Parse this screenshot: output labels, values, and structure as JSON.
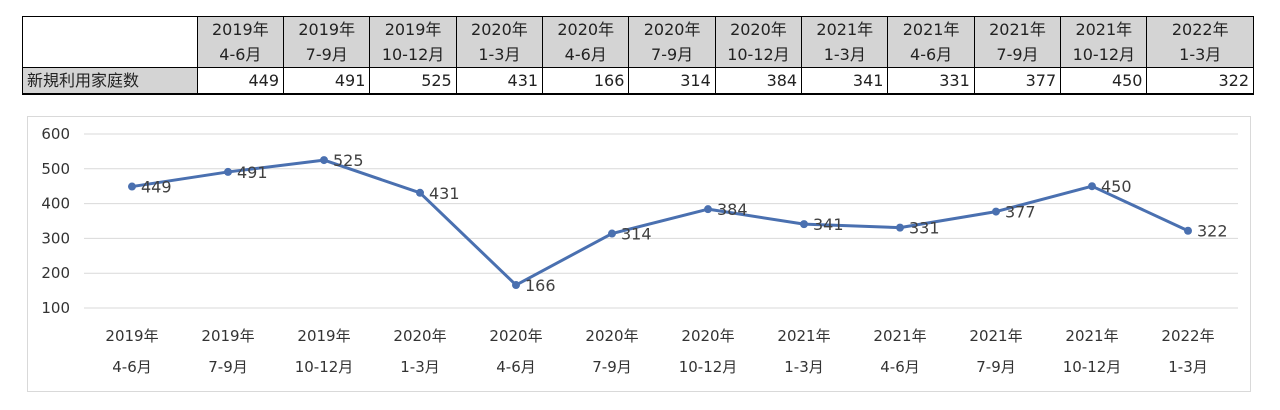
{
  "table": {
    "row_label": "新規利用家庭数",
    "columns": [
      {
        "year": "2019年",
        "period": "4-6月",
        "value": "449"
      },
      {
        "year": "2019年",
        "period": "7-9月",
        "value": "491"
      },
      {
        "year": "2019年",
        "period": "10-12月",
        "value": "525"
      },
      {
        "year": "2020年",
        "period": "1-3月",
        "value": "431"
      },
      {
        "year": "2020年",
        "period": "4-6月",
        "value": "166"
      },
      {
        "year": "2020年",
        "period": "7-9月",
        "value": "314"
      },
      {
        "year": "2020年",
        "period": "10-12月",
        "value": "384"
      },
      {
        "year": "2021年",
        "period": "1-3月",
        "value": "341"
      },
      {
        "year": "2021年",
        "period": "4-6月",
        "value": "331"
      },
      {
        "year": "2021年",
        "period": "7-9月",
        "value": "377"
      },
      {
        "year": "2021年",
        "period": "10-12月",
        "value": "450"
      },
      {
        "year": "2022年",
        "period": "1-3月",
        "value": "322"
      }
    ]
  },
  "chart_data": {
    "type": "line",
    "categories": [
      [
        "2019年",
        "4-6月"
      ],
      [
        "2019年",
        "7-9月"
      ],
      [
        "2019年",
        "10-12月"
      ],
      [
        "2020年",
        "1-3月"
      ],
      [
        "2020年",
        "4-6月"
      ],
      [
        "2020年",
        "7-9月"
      ],
      [
        "2020年",
        "10-12月"
      ],
      [
        "2021年",
        "1-3月"
      ],
      [
        "2021年",
        "4-6月"
      ],
      [
        "2021年",
        "7-9月"
      ],
      [
        "2021年",
        "10-12月"
      ],
      [
        "2022年",
        "1-3月"
      ]
    ],
    "series": [
      {
        "values": [
          449,
          491,
          525,
          431,
          166,
          314,
          384,
          341,
          331,
          377,
          450,
          322
        ]
      }
    ],
    "ylim": [
      100,
      600
    ],
    "yticks": [
      "100",
      "200",
      "300",
      "400",
      "500",
      "600"
    ],
    "grid": true,
    "legend": "none",
    "title": "",
    "xlabel": "",
    "ylabel": "",
    "colors": {
      "line": "#4a70b0",
      "grid": "#d9d9d9"
    }
  }
}
